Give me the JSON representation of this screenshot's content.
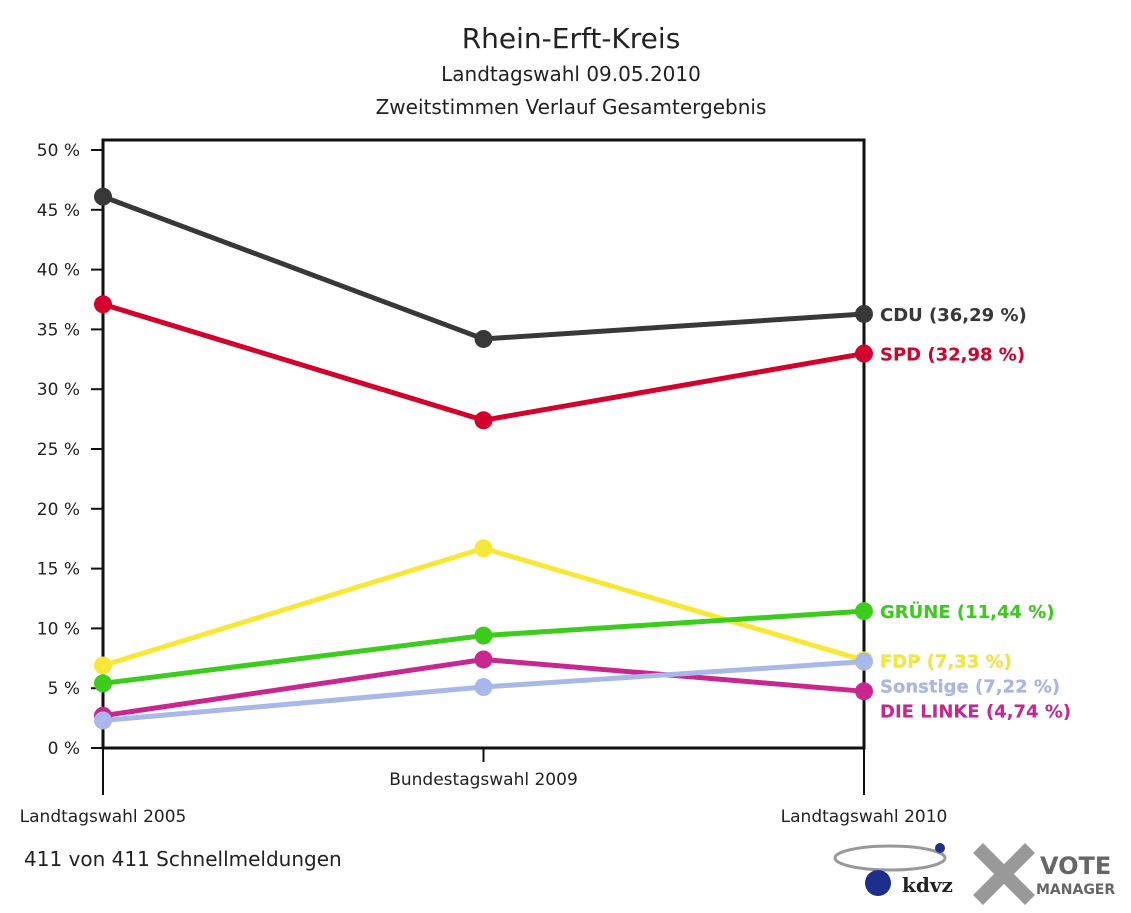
{
  "chart_data": {
    "type": "line",
    "title": "Rhein-Erft-Kreis",
    "subtitle": [
      "Landtagswahl 09.05.2010",
      "Zweitstimmen Verlauf Gesamtergebnis"
    ],
    "categories": [
      "Landtagswahl 2005",
      "Bundestagswahl 2009",
      "Landtagswahl 2010"
    ],
    "ylim": [
      0,
      50
    ],
    "yticks": [
      {
        "value": 0,
        "label": "0 %"
      },
      {
        "value": 5,
        "label": "5 %"
      },
      {
        "value": 10,
        "label": "10 %"
      },
      {
        "value": 15,
        "label": "15 %"
      },
      {
        "value": 20,
        "label": "20 %"
      },
      {
        "value": 25,
        "label": "25 %"
      },
      {
        "value": 30,
        "label": "30 %"
      },
      {
        "value": 35,
        "label": "35 %"
      },
      {
        "value": 40,
        "label": "40 %"
      },
      {
        "value": 45,
        "label": "45 %"
      },
      {
        "value": 50,
        "label": "50 %"
      }
    ],
    "series": [
      {
        "name": "CDU",
        "color": "#383838",
        "values": [
          46.1,
          34.2,
          36.29
        ],
        "value_labels": [
          null,
          null,
          "CDU (36,29 %)"
        ]
      },
      {
        "name": "SPD",
        "color": "#d3002c",
        "values": [
          37.1,
          27.4,
          32.98
        ],
        "value_labels": [
          null,
          null,
          "SPD (32,98 %)"
        ]
      },
      {
        "name": "FDP",
        "color": "#f7e838",
        "values": [
          6.9,
          16.7,
          7.33
        ],
        "value_labels": [
          null,
          null,
          "FDP (7,33 %)"
        ]
      },
      {
        "name": "GRÜNE",
        "color": "#3ccc1c",
        "values": [
          5.4,
          9.4,
          11.44
        ],
        "value_labels": [
          null,
          null,
          "GRÜNE (11,44 %)"
        ]
      },
      {
        "name": "DIE LINKE",
        "color": "#c92690",
        "values": [
          2.7,
          7.4,
          4.74
        ],
        "value_labels": [
          null,
          null,
          "DIE LINKE (4,74 %)"
        ]
      },
      {
        "name": "Sonstige",
        "color": "#a8b8e8",
        "values": [
          2.3,
          5.1,
          7.22
        ],
        "value_labels": [
          null,
          null,
          "Sonstige (7,22 %)"
        ]
      }
    ]
  },
  "footer": {
    "note": "411 von 411 Schnellmeldungen",
    "logos": [
      "kdvz",
      "VOTE",
      "MANAGER"
    ]
  }
}
